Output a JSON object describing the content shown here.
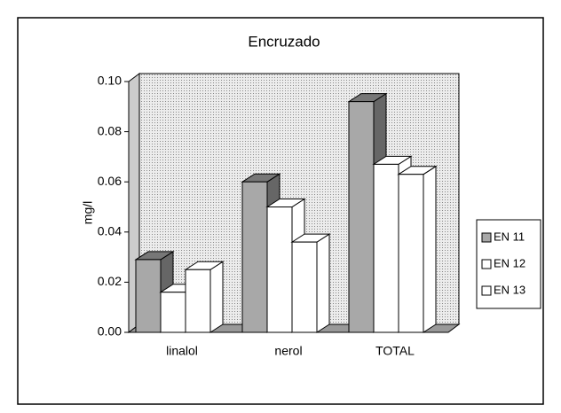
{
  "chart_data": {
    "type": "bar3d",
    "title": "Encruzado",
    "y_label": "mg/l",
    "categories": [
      "linalol",
      "nerol",
      "TOTAL"
    ],
    "series": [
      {
        "name": "EN 11",
        "color": "#a8a8a8",
        "values": [
          0.029,
          0.06,
          0.092
        ]
      },
      {
        "name": "EN 12",
        "color": "#ffffff",
        "values": [
          0.016,
          0.05,
          0.067
        ]
      },
      {
        "name": "EN 13",
        "color": "#ffffff",
        "values": [
          0.025,
          0.036,
          0.063
        ]
      }
    ],
    "ylim": [
      0,
      0.1
    ],
    "yticks": [
      {
        "value": 0,
        "label": "0.00"
      },
      0.02,
      0.04,
      0.06,
      0.08,
      {
        "value": 0.1,
        "label": "0.10"
      }
    ],
    "legend": "right"
  }
}
